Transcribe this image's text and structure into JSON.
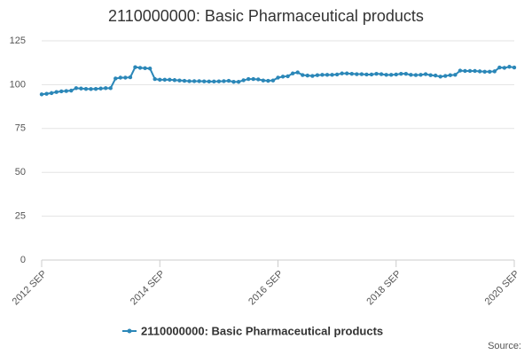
{
  "chart_data": {
    "type": "line",
    "title": "2110000000: Basic Pharmaceutical products",
    "categories": [
      "2012 SEP",
      null,
      null,
      null,
      null,
      null,
      null,
      null,
      null,
      null,
      null,
      null,
      null,
      null,
      null,
      null,
      null,
      null,
      null,
      null,
      null,
      null,
      null,
      null,
      "2014 SEP",
      null,
      null,
      null,
      null,
      null,
      null,
      null,
      null,
      null,
      null,
      null,
      null,
      null,
      null,
      null,
      null,
      null,
      null,
      null,
      null,
      null,
      null,
      null,
      "2016 SEP",
      null,
      null,
      null,
      null,
      null,
      null,
      null,
      null,
      null,
      null,
      null,
      null,
      null,
      null,
      null,
      null,
      null,
      null,
      null,
      null,
      null,
      null,
      null,
      "2018 SEP",
      null,
      null,
      null,
      null,
      null,
      null,
      null,
      null,
      null,
      null,
      null,
      null,
      null,
      null,
      null,
      null,
      null,
      null,
      null,
      null,
      null,
      null,
      null,
      "2020 SEP"
    ],
    "series": [
      {
        "name": "2110000000: Basic Pharmaceutical products",
        "color": "#2b87b8",
        "values": [
          94.5,
          94.8,
          95.2,
          95.8,
          96.2,
          96.4,
          96.6,
          98.0,
          97.8,
          97.6,
          97.5,
          97.6,
          97.8,
          98.0,
          98.0,
          103.5,
          104.0,
          104.0,
          104.2,
          110.0,
          109.6,
          109.4,
          109.2,
          103.2,
          102.8,
          102.8,
          102.8,
          102.6,
          102.4,
          102.2,
          102.0,
          102.0,
          102.0,
          101.9,
          101.8,
          101.8,
          101.9,
          102.0,
          102.2,
          101.6,
          101.6,
          102.5,
          103.2,
          103.2,
          103.0,
          102.4,
          102.2,
          102.4,
          104.0,
          104.6,
          104.8,
          106.4,
          107.0,
          105.5,
          105.2,
          105.0,
          105.4,
          105.6,
          105.6,
          105.6,
          105.8,
          106.4,
          106.4,
          106.2,
          106.0,
          106.0,
          105.8,
          105.8,
          106.2,
          106.0,
          105.6,
          105.6,
          105.8,
          106.2,
          106.2,
          105.6,
          105.5,
          105.6,
          106.0,
          105.4,
          105.2,
          104.6,
          105.0,
          105.4,
          105.6,
          108.0,
          107.8,
          107.8,
          107.8,
          107.6,
          107.4,
          107.4,
          107.6,
          109.8,
          109.6,
          110.2,
          109.8
        ]
      }
    ],
    "ylim": [
      0,
      125
    ],
    "yticks": [
      0,
      25,
      50,
      75,
      100,
      125
    ],
    "grid": true,
    "legend": "bottom",
    "source_label": "Source:"
  }
}
